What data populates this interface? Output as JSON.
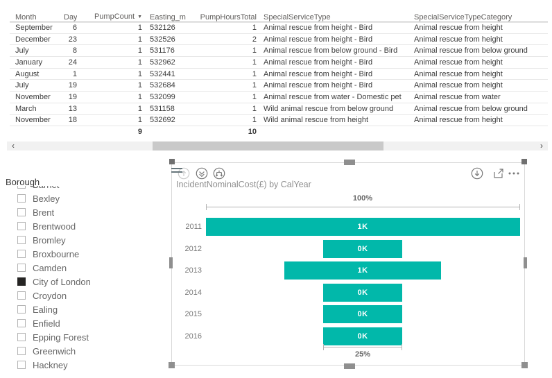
{
  "table": {
    "columns": [
      {
        "label": "Month",
        "align": "left"
      },
      {
        "label": "Day",
        "align": "right"
      },
      {
        "label": "PumpCount",
        "align": "right",
        "sort": "desc"
      },
      {
        "label": "Easting_m",
        "align": "left"
      },
      {
        "label": "PumpHoursTotal",
        "align": "right"
      },
      {
        "label": "SpecialServiceType",
        "align": "left"
      },
      {
        "label": "SpecialServiceTypeCategory",
        "align": "left"
      }
    ],
    "sort_arrow": "▼",
    "rows": [
      [
        "September",
        "6",
        "1",
        "532126",
        "1",
        "Animal rescue from height - Bird",
        "Animal rescue from height"
      ],
      [
        "December",
        "23",
        "1",
        "532526",
        "2",
        "Animal rescue from height - Bird",
        "Animal rescue from height"
      ],
      [
        "July",
        "8",
        "1",
        "531176",
        "1",
        "Animal rescue from below ground - Bird",
        "Animal rescue from below ground"
      ],
      [
        "January",
        "24",
        "1",
        "532962",
        "1",
        "Animal rescue from height - Bird",
        "Animal rescue from height"
      ],
      [
        "August",
        "1",
        "1",
        "532441",
        "1",
        "Animal rescue from height - Bird",
        "Animal rescue from height"
      ],
      [
        "July",
        "19",
        "1",
        "532684",
        "1",
        "Animal rescue from height - Bird",
        "Animal rescue from height"
      ],
      [
        "November",
        "19",
        "1",
        "532099",
        "1",
        "Animal rescue from water - Domestic pet",
        "Animal rescue from water"
      ],
      [
        "March",
        "13",
        "1",
        "531158",
        "1",
        "Wild animal rescue from below ground",
        "Animal rescue from below ground"
      ],
      [
        "November",
        "18",
        "1",
        "532692",
        "1",
        "Wild animal rescue from height",
        "Animal rescue from height"
      ]
    ],
    "totals": {
      "pump_count": "9",
      "pump_hours_total": "10"
    },
    "scrollbar": {
      "left_arrow": "‹",
      "right_arrow": "›"
    }
  },
  "slicer": {
    "title": "Borough",
    "items": [
      {
        "label": "Barnet",
        "checked": false
      },
      {
        "label": "Bexley",
        "checked": false
      },
      {
        "label": "Brent",
        "checked": false
      },
      {
        "label": "Brentwood",
        "checked": false
      },
      {
        "label": "Bromley",
        "checked": false
      },
      {
        "label": "Broxbourne",
        "checked": false
      },
      {
        "label": "Camden",
        "checked": false
      },
      {
        "label": "City of London",
        "checked": true
      },
      {
        "label": "Croydon",
        "checked": false
      },
      {
        "label": "Ealing",
        "checked": false
      },
      {
        "label": "Enfield",
        "checked": false
      },
      {
        "label": "Epping Forest",
        "checked": false
      },
      {
        "label": "Greenwich",
        "checked": false
      },
      {
        "label": "Hackney",
        "checked": false
      }
    ]
  },
  "chart": {
    "title": "IncidentNominalCost(£) by CalYear",
    "toolbar_icons": [
      "drill-up",
      "drill-down-next-level",
      "expand-all-down",
      "drag-grip",
      "drill-down-toggle",
      "focus-mode",
      "more-options"
    ]
  },
  "chart_data": {
    "type": "funnel",
    "title": "IncidentNominalCost(£) by CalYear",
    "categories": [
      "2011",
      "2012",
      "2013",
      "2014",
      "2015",
      "2016"
    ],
    "bar_labels": [
      "1K",
      "0K",
      "1K",
      "0K",
      "0K",
      "0K"
    ],
    "values_pct_of_max": [
      100,
      25,
      50,
      25,
      25,
      25
    ],
    "first_bar_annotation": "100%",
    "last_bar_annotation": "25%",
    "orientation": "horizontal-centered",
    "bar_color": "#01B8AA",
    "legend": "none"
  },
  "colors": {
    "accent_teal": "#01B8AA",
    "table_text": "#3b3b3b",
    "header_text": "#605E5C",
    "gray_label": "#777777",
    "checked_box": "#252423",
    "scroll_thumb": "#c9c9c9"
  }
}
